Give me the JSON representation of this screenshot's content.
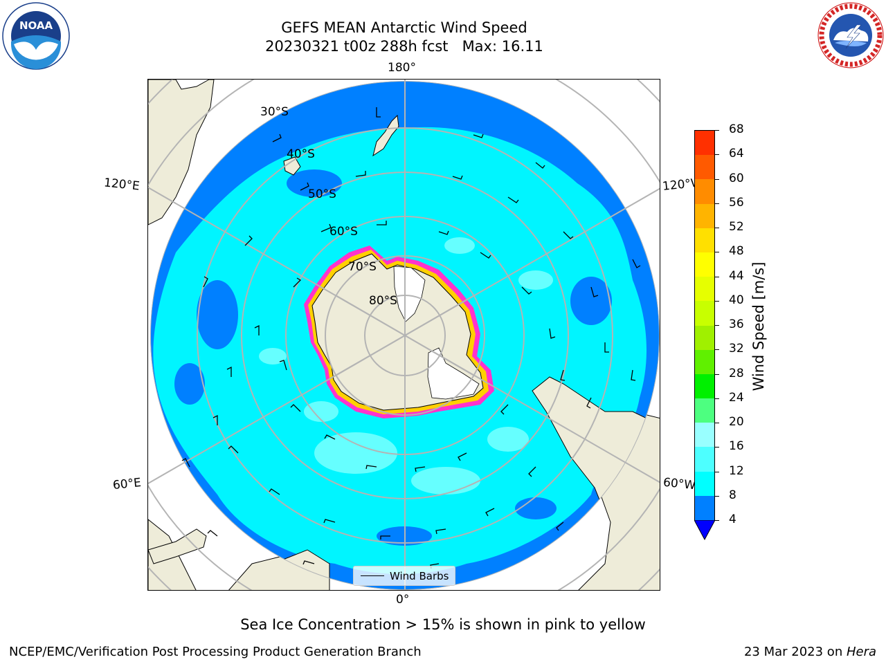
{
  "title": {
    "line1": "GEFS MEAN Antarctic Wind Speed",
    "line2": "20230321 t00z 288h fcst   Max: 16.11"
  },
  "map": {
    "longitude_labels": {
      "top": "180°",
      "bottom": "0°",
      "upper_left": "120°E",
      "upper_right": "120°W",
      "lower_left": "60°E",
      "lower_right": "60°W"
    },
    "latitude_labels": [
      "30°S",
      "40°S",
      "50°S",
      "60°S",
      "70°S",
      "80°S"
    ],
    "legend_label": "Wind Barbs",
    "colors": {
      "land": "#eeecd9",
      "ocean_low": "#0080ff",
      "ocean_mid": "#00f5ff",
      "ocean_high": "#66ffff",
      "ice_edge": "#ff33cc",
      "ice_inner": "#ffd000",
      "gridline": "#b4b4b4"
    }
  },
  "colorbar": {
    "title": "Wind Speed [m/s]",
    "ticks": [
      "4",
      "8",
      "12",
      "16",
      "20",
      "24",
      "28",
      "32",
      "36",
      "40",
      "44",
      "48",
      "52",
      "56",
      "60",
      "64",
      "68"
    ],
    "colors": [
      "#0080ff",
      "#00ffff",
      "#4dffff",
      "#99ffff",
      "#4dff80",
      "#00f000",
      "#60f000",
      "#a0f000",
      "#c8ff00",
      "#e6ff00",
      "#ffff00",
      "#ffe000",
      "#ffb400",
      "#ff8c00",
      "#ff5a00",
      "#ff3000"
    ],
    "extend_color": "#0000ff"
  },
  "caption": "Sea Ice Concentration > 15% is shown in pink to yellow",
  "footer": {
    "left": "NCEP/EMC/Verification Post Processing Product Generation Branch",
    "right_date": "23 Mar 2023 on ",
    "right_machine": "Hera"
  },
  "logos": {
    "noaa": "NOAA",
    "nws": "NATIONAL WEATHER SERVICE"
  }
}
